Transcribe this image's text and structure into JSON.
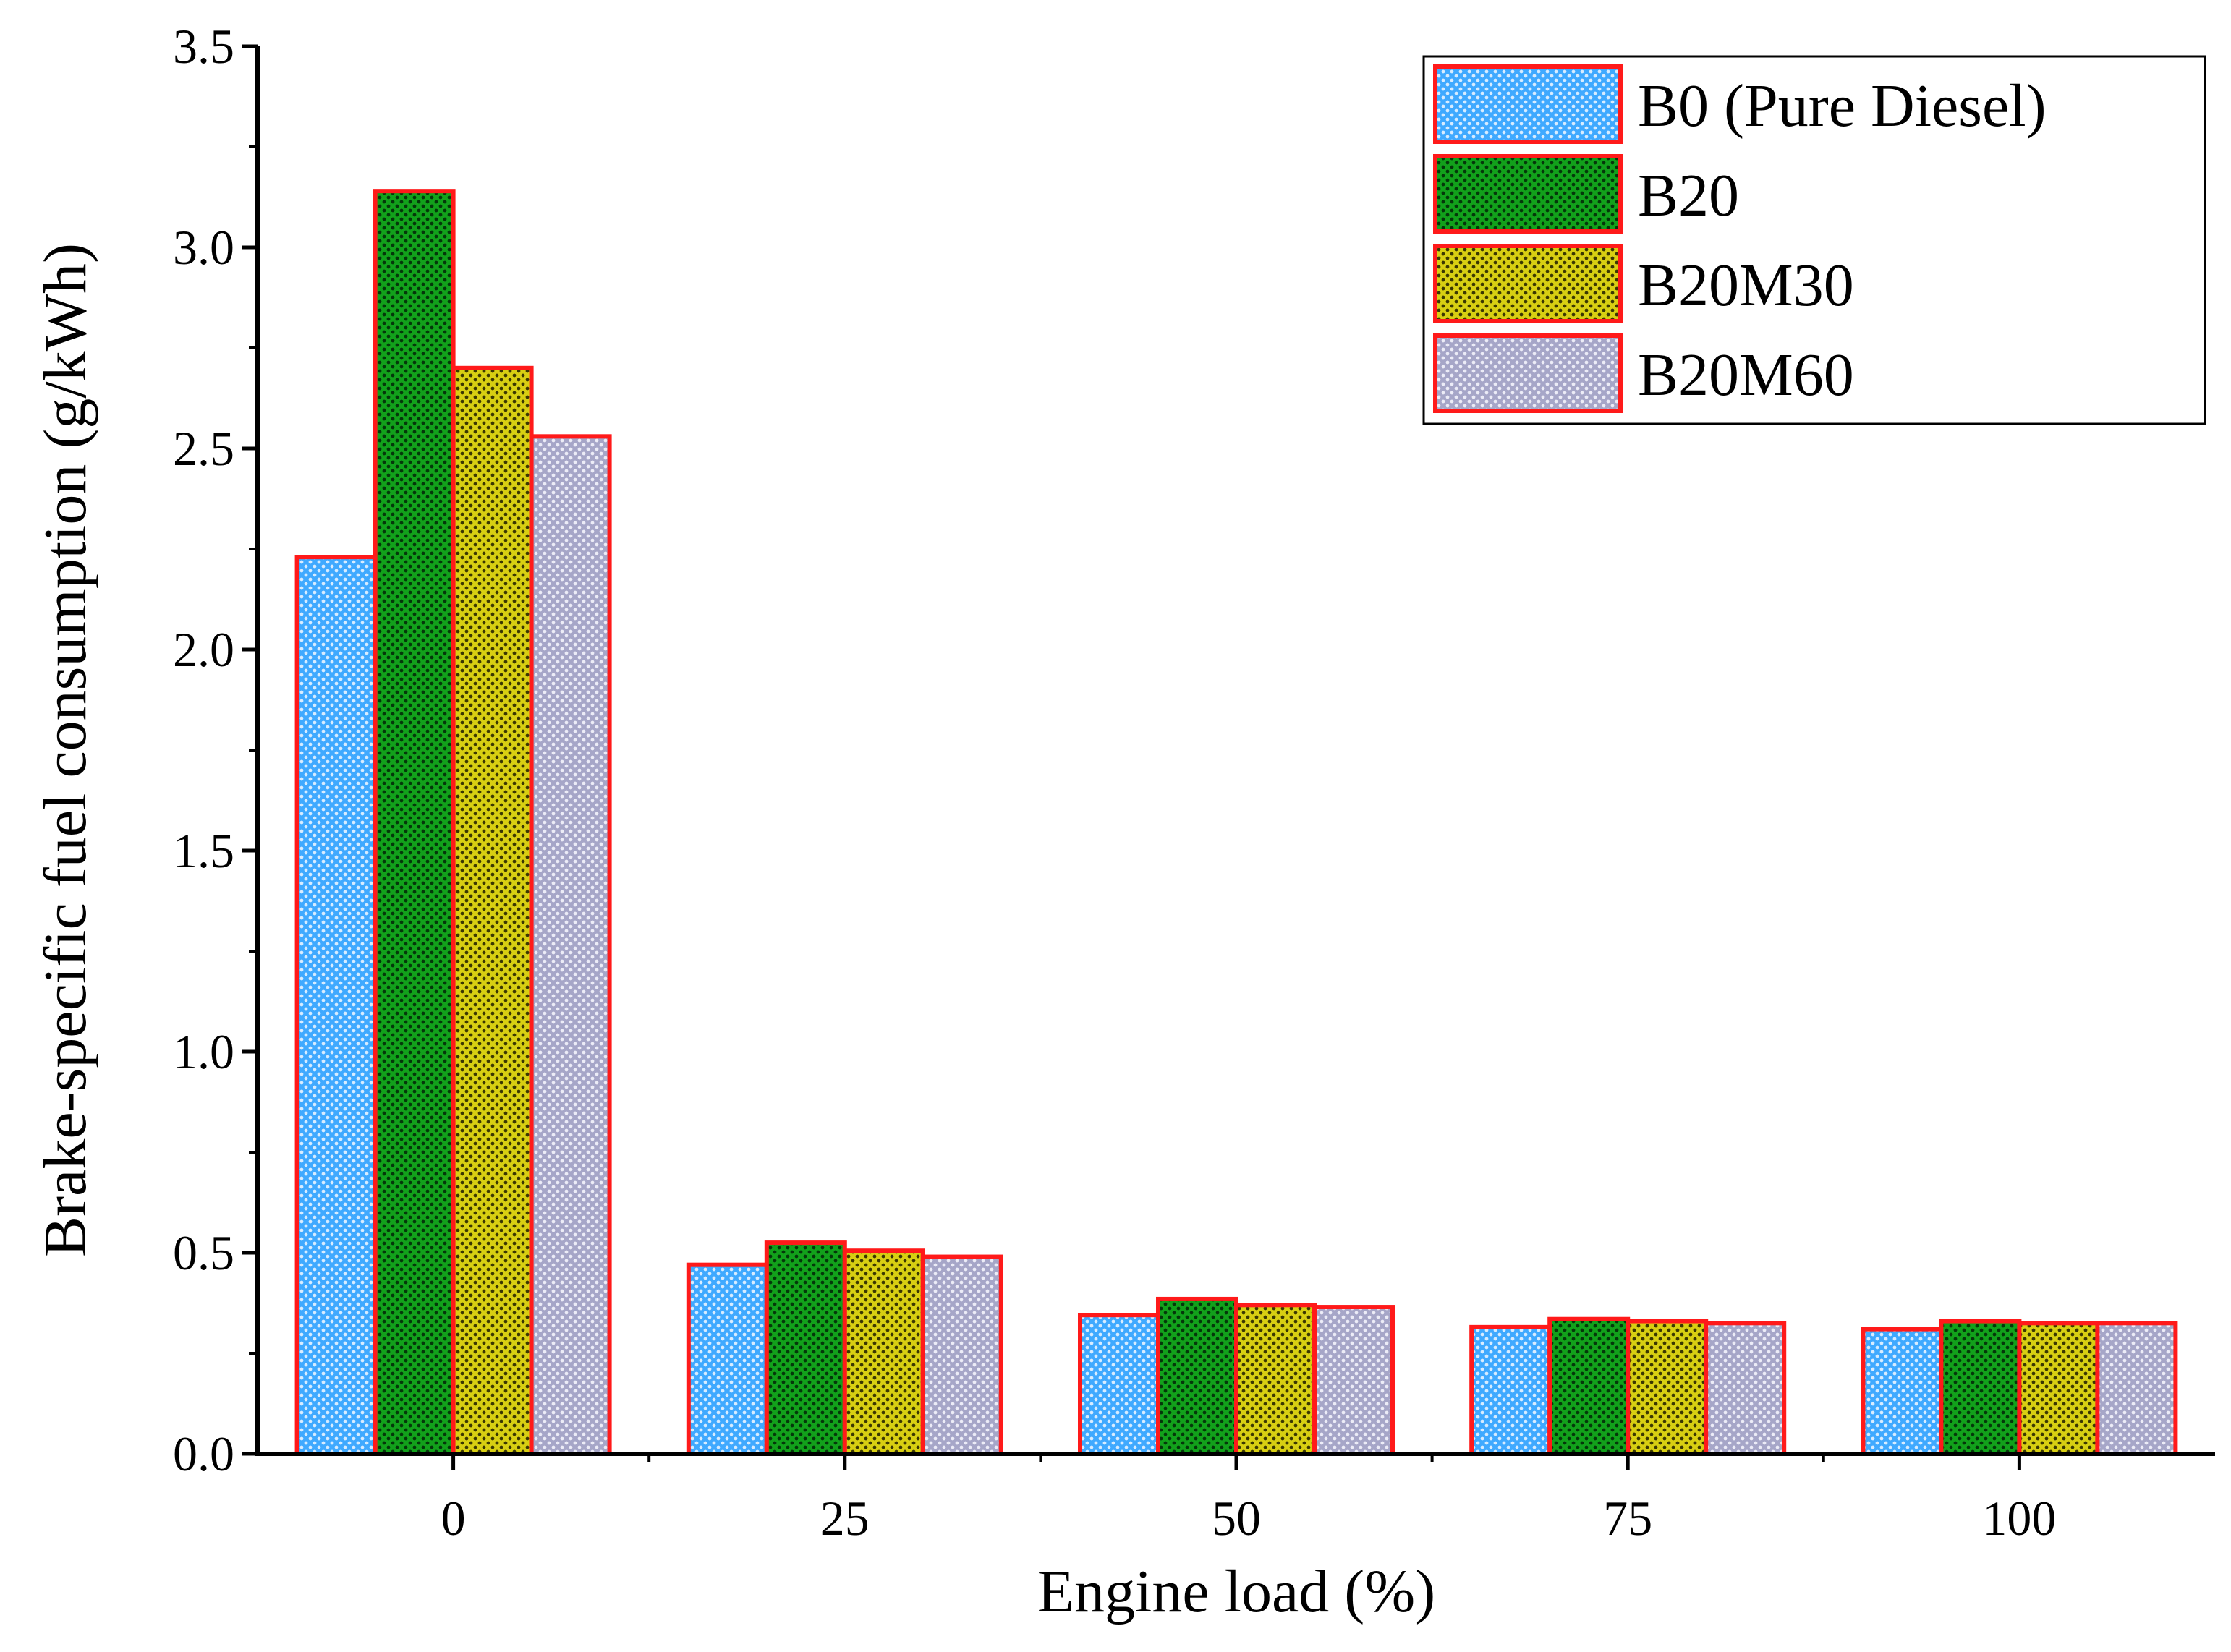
{
  "chart_data": {
    "type": "bar",
    "xlabel": "Engine load (%)",
    "ylabel": "Brake-specific fuel consumption (g/kWh)",
    "categories": [
      "0",
      "25",
      "50",
      "75",
      "100"
    ],
    "ylim": [
      0,
      3.5
    ],
    "yticks": [
      "0.0",
      "0.5",
      "1.0",
      "1.5",
      "2.0",
      "2.5",
      "3.0",
      "3.5"
    ],
    "grid": false,
    "legend_position": "top-right",
    "series": [
      {
        "name": "B0 (Pure Diesel)",
        "values": [
          2.23,
          0.47,
          0.345,
          0.315,
          0.31
        ],
        "color": "#3fa9ff",
        "dot": "#d8ecff"
      },
      {
        "name": "B20",
        "values": [
          3.14,
          0.525,
          0.385,
          0.335,
          0.33
        ],
        "color": "#12a11b",
        "dot": "#04370a"
      },
      {
        "name": "B20M30",
        "values": [
          2.7,
          0.505,
          0.37,
          0.33,
          0.325
        ],
        "color": "#d8cf12",
        "dot": "#3a3702"
      },
      {
        "name": "B20M60",
        "values": [
          2.53,
          0.49,
          0.365,
          0.325,
          0.325
        ],
        "color": "#a6a6c8",
        "dot": "#ececf7"
      }
    ],
    "bar_edge_color": "#ff1a1a"
  }
}
